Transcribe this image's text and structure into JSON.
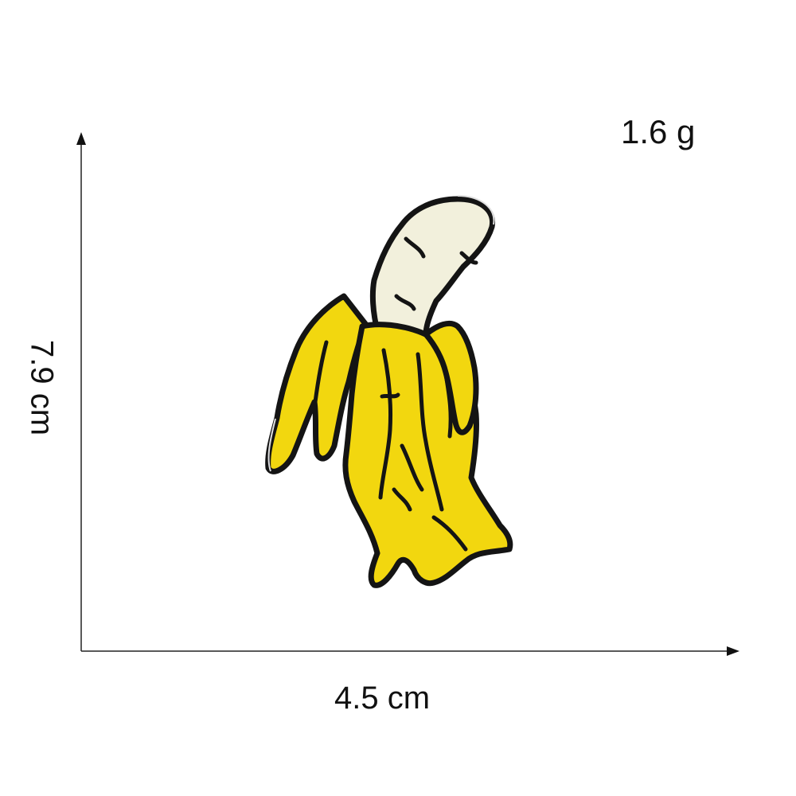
{
  "dimensions": {
    "weight": "1.6 g",
    "width": "4.5 cm",
    "height": "7.9 cm"
  },
  "product": {
    "icon": "banana-patch-icon",
    "colors": {
      "peel": "#f2d70f",
      "flesh": "#f2f0dc",
      "outline": "#141414"
    }
  }
}
